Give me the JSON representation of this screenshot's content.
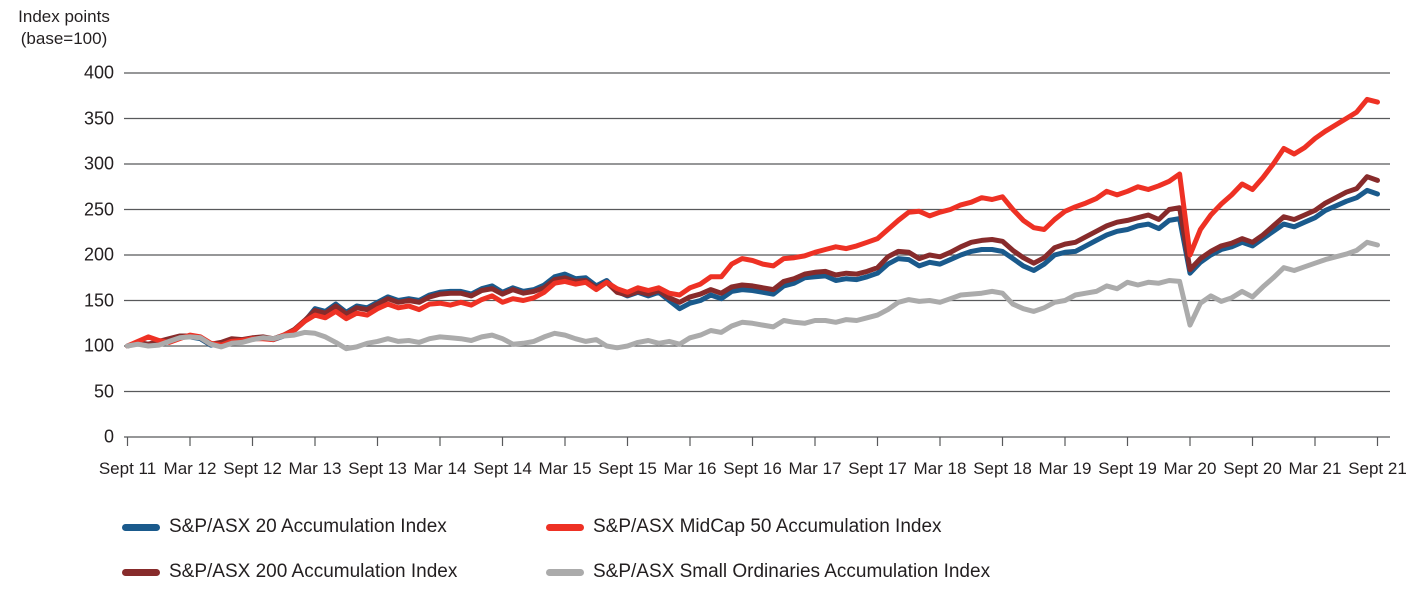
{
  "axis_title": {
    "line1": "Index points",
    "line2": "(base=100)"
  },
  "colors": {
    "grid": "#58595B",
    "text": "#231F20",
    "background": "#FFFFFF",
    "asx20": "#1A5A8C",
    "asx200": "#872B2B",
    "midcap50": "#EE3124",
    "smallords": "#ABABAB"
  },
  "chart_data": {
    "type": "line",
    "title": "Index points (base=100)",
    "xlabel": "",
    "ylabel": "Index points (base=100)",
    "ylim": [
      0,
      400
    ],
    "y_ticks": [
      400,
      350,
      300,
      250,
      200,
      150,
      100,
      50,
      0
    ],
    "grid": "horizontal gridlines on, at every 50 index points",
    "legend_position": "bottom, two columns",
    "x_start": "Sept 2011",
    "x_end": "Sept 2021",
    "x_frequency": "monthly",
    "x_tick_labels": [
      "Sept 11",
      "Mar 12",
      "Sept 12",
      "Mar 13",
      "Sept 13",
      "Mar 14",
      "Sept 14",
      "Mar 15",
      "Sept 15",
      "Mar 16",
      "Sept 16",
      "Mar 17",
      "Sept 17",
      "Mar 18",
      "Sept 18",
      "Mar 19",
      "Sept 19",
      "Mar 20",
      "Sept 20",
      "Mar 21",
      "Sept 21"
    ],
    "series": [
      {
        "id": "asx20",
        "name": "S&P/ASX 20 Accumulation Index",
        "color": "#1A5A8C",
        "values": [
          100,
          103,
          101,
          104,
          107,
          110,
          110,
          108,
          101,
          103,
          107,
          106,
          108,
          109,
          107,
          111,
          117,
          127,
          141,
          138,
          146,
          137,
          144,
          142,
          148,
          154,
          150,
          152,
          150,
          156,
          159,
          160,
          160,
          157,
          163,
          166,
          159,
          164,
          160,
          162,
          167,
          176,
          179,
          174,
          175,
          166,
          172,
          160,
          155,
          159,
          155,
          159,
          150,
          141,
          147,
          150,
          156,
          152,
          160,
          162,
          161,
          159,
          157,
          166,
          169,
          175,
          176,
          177,
          172,
          174,
          173,
          176,
          180,
          190,
          196,
          195,
          188,
          192,
          190,
          195,
          200,
          204,
          206,
          206,
          204,
          196,
          188,
          183,
          190,
          200,
          203,
          204,
          210,
          216,
          222,
          226,
          228,
          232,
          234,
          229,
          238,
          240,
          180,
          192,
          200,
          206,
          209,
          214,
          210,
          218,
          226,
          234,
          231,
          236,
          241,
          249,
          254,
          259,
          263,
          271,
          267
        ]
      },
      {
        "id": "asx200",
        "name": "S&P/ASX 200 Accumulation Index",
        "color": "#872B2B",
        "values": [
          100,
          104,
          102,
          105,
          108,
          111,
          111,
          109,
          102,
          104,
          108,
          107,
          109,
          110,
          108,
          112,
          118,
          128,
          139,
          136,
          144,
          135,
          142,
          140,
          146,
          152,
          148,
          150,
          148,
          154,
          157,
          158,
          158,
          155,
          161,
          163,
          157,
          162,
          158,
          160,
          164,
          173,
          175,
          171,
          172,
          164,
          170,
          159,
          156,
          160,
          157,
          161,
          153,
          148,
          154,
          157,
          162,
          158,
          165,
          167,
          166,
          164,
          162,
          171,
          174,
          179,
          181,
          182,
          178,
          180,
          179,
          182,
          186,
          198,
          204,
          203,
          196,
          200,
          198,
          203,
          209,
          214,
          216,
          217,
          215,
          205,
          197,
          191,
          197,
          208,
          212,
          214,
          220,
          226,
          232,
          236,
          238,
          241,
          244,
          239,
          250,
          252,
          184,
          196,
          204,
          210,
          213,
          218,
          214,
          222,
          232,
          242,
          239,
          244,
          249,
          257,
          263,
          269,
          273,
          286,
          282
        ]
      },
      {
        "id": "midcap50",
        "name": "S&P/ASX MidCap 50 Accumulation Index",
        "color": "#EE3124",
        "values": [
          100,
          105,
          110,
          106,
          104,
          108,
          112,
          110,
          103,
          101,
          105,
          106,
          108,
          108,
          107,
          112,
          117,
          127,
          134,
          131,
          138,
          130,
          136,
          134,
          141,
          146,
          142,
          144,
          140,
          146,
          147,
          145,
          148,
          145,
          151,
          155,
          148,
          152,
          150,
          153,
          159,
          169,
          171,
          168,
          170,
          162,
          170,
          163,
          159,
          164,
          161,
          164,
          158,
          156,
          164,
          168,
          176,
          176,
          190,
          196,
          194,
          190,
          188,
          196,
          197,
          199,
          203,
          206,
          209,
          207,
          210,
          214,
          218,
          228,
          238,
          247,
          248,
          243,
          247,
          250,
          255,
          258,
          263,
          261,
          264,
          250,
          238,
          230,
          228,
          239,
          248,
          253,
          257,
          262,
          270,
          266,
          270,
          275,
          272,
          276,
          281,
          289,
          200,
          228,
          244,
          256,
          266,
          278,
          272,
          285,
          300,
          317,
          311,
          318,
          328,
          336,
          343,
          350,
          357,
          371,
          368
        ]
      },
      {
        "id": "smallords",
        "name": "S&P/ASX Small Ordinaries Accumulation Index",
        "color": "#ABABAB",
        "values": [
          100,
          102,
          100,
          101,
          105,
          109,
          110,
          109,
          102,
          99,
          103,
          104,
          107,
          109,
          108,
          111,
          112,
          115,
          114,
          110,
          104,
          97,
          99,
          103,
          105,
          108,
          105,
          106,
          104,
          108,
          110,
          109,
          108,
          106,
          110,
          112,
          108,
          102,
          103,
          105,
          110,
          114,
          112,
          108,
          105,
          107,
          100,
          98,
          100,
          104,
          106,
          103,
          105,
          102,
          109,
          112,
          117,
          115,
          122,
          126,
          125,
          123,
          121,
          128,
          126,
          125,
          128,
          128,
          126,
          129,
          128,
          131,
          134,
          140,
          148,
          151,
          149,
          150,
          148,
          152,
          156,
          157,
          158,
          160,
          158,
          146,
          141,
          138,
          142,
          148,
          150,
          156,
          158,
          160,
          166,
          163,
          170,
          167,
          170,
          169,
          172,
          171,
          123,
          147,
          155,
          149,
          153,
          160,
          154,
          165,
          175,
          186,
          183,
          187,
          191,
          195,
          198,
          201,
          205,
          214,
          211
        ]
      }
    ],
    "legend_rows": [
      [
        "asx20",
        "midcap50"
      ],
      [
        "asx200",
        "smallords"
      ]
    ]
  }
}
